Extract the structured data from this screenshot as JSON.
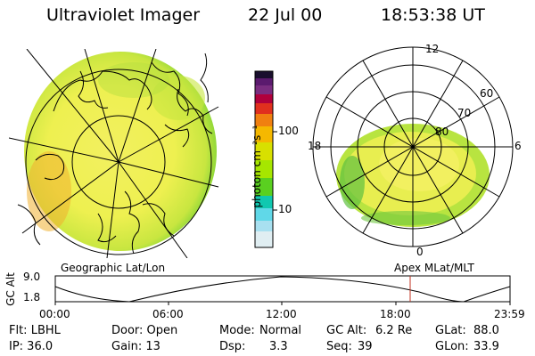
{
  "header": {
    "instrument": "Ultraviolet Imager",
    "date": "22 Jul 00",
    "time": "18:53:38 UT"
  },
  "colorbar": {
    "unit_label": "photon cm⁻²s⁻¹",
    "ticks": [
      "100",
      "10"
    ],
    "colors_top_to_bottom": [
      "#1a0f2e",
      "#5b1a6e",
      "#b0003c",
      "#e0301e",
      "#f08010",
      "#f5b800",
      "#d8e000",
      "#a6e600",
      "#5ad020",
      "#10c8b0",
      "#60d8e8",
      "#c0e8f0"
    ]
  },
  "left_map": {
    "caption": "Geographic Lat/Lon"
  },
  "right_map": {
    "caption": "Apex MLat/MLT",
    "mlt_labels": {
      "top": "12",
      "bottom": "0",
      "left": "18",
      "right": "6"
    },
    "lat_labels": [
      "60",
      "70",
      "80"
    ]
  },
  "altitude_plot": {
    "ylabel": "GC Alt",
    "yticks": [
      "9.0",
      "1.8"
    ],
    "xticks": [
      "00:00",
      "06:00",
      "12:00",
      "18:00",
      "23:59"
    ],
    "marker_color": "#c03020"
  },
  "params": {
    "flt": "Flt: LBHL",
    "ip": "IP: 36.0",
    "door": "Door: Open",
    "gain": "Gain: 13",
    "mode_label": "Mode:",
    "mode_value": "Normal",
    "dsp_label": "Dsp:",
    "dsp_value": "3.3",
    "gcalt_label": "GC Alt:",
    "gcalt_value": "6.2 Re",
    "seq_label": "Seq:",
    "seq_value": "39",
    "glat_label": "GLat:",
    "glat_value": "88.0",
    "glon_label": "GLon:",
    "glon_value": "33.9"
  }
}
